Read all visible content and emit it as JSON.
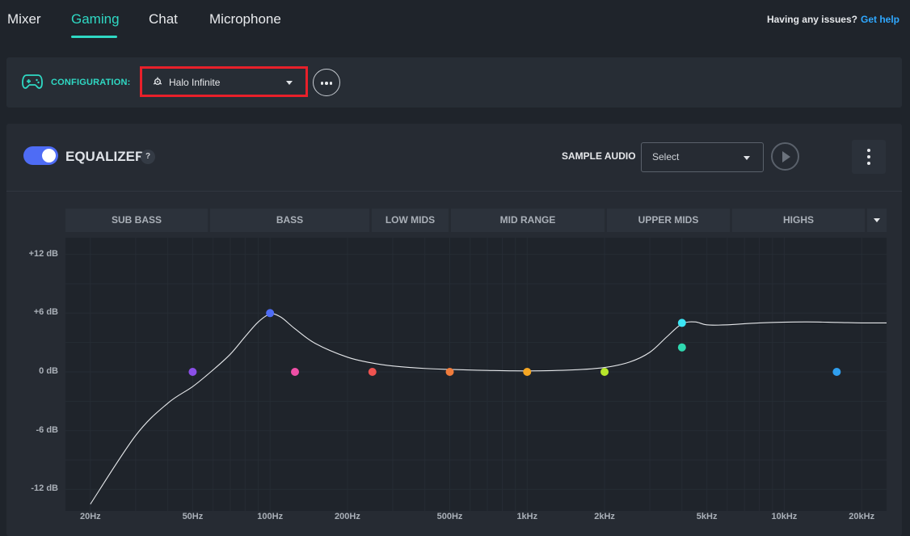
{
  "nav": {
    "tabs": [
      {
        "label": "Mixer"
      },
      {
        "label": "Gaming"
      },
      {
        "label": "Chat"
      },
      {
        "label": "Microphone"
      }
    ],
    "active_tab": "Gaming",
    "help_question": "Having any issues?",
    "help_link": "Get help"
  },
  "config": {
    "label": "CONFIGURATION:",
    "selected": "Halo Infinite",
    "icons": {
      "gamepad": "gamepad-icon",
      "preset": "steelseries-icon",
      "more": "more-horizontal-icon"
    }
  },
  "equalizer": {
    "enabled": true,
    "title": "EQUALIZER",
    "help": "?",
    "sample_audio_label": "SAMPLE AUDIO",
    "sample_select_placeholder": "Select",
    "bands": [
      "SUB BASS",
      "BASS",
      "LOW MIDS",
      "MID RANGE",
      "UPPER MIDS",
      "HIGHS"
    ],
    "accent": "#4e6cf5"
  },
  "chart_data": {
    "type": "line",
    "title": "Equalizer",
    "y_tick_labels": [
      "+12 dB",
      "+6 dB",
      "0 dB",
      "-6 dB",
      "-12 dB"
    ],
    "y_ticks": [
      12,
      6,
      0,
      -6,
      -12
    ],
    "ylim": [
      -13.7,
      13.7
    ],
    "x_tick_labels": [
      "20Hz",
      "50Hz",
      "100Hz",
      "200Hz",
      "500Hz",
      "1kHz",
      "2kHz",
      "5kHz",
      "10kHz",
      "20kHz"
    ],
    "x_ticks": [
      20,
      50,
      100,
      200,
      500,
      1000,
      2000,
      5000,
      10000,
      20000
    ],
    "xlim_hz": [
      16,
      25000
    ],
    "x_scale": "log",
    "filter_points": [
      {
        "freq": 50,
        "gain": 0,
        "color": "#8b4fe8"
      },
      {
        "freq": 100,
        "gain": 6,
        "color": "#4e6cf5"
      },
      {
        "freq": 125,
        "gain": 0,
        "color": "#ee4fa6"
      },
      {
        "freq": 250,
        "gain": 0,
        "color": "#ef5350"
      },
      {
        "freq": 500,
        "gain": 0,
        "color": "#f07c3c"
      },
      {
        "freq": 1000,
        "gain": 0,
        "color": "#f5a623"
      },
      {
        "freq": 2000,
        "gain": 0,
        "color": "#b7e62b"
      },
      {
        "freq": 4000,
        "gain": 5,
        "color": "#3ce6f5"
      },
      {
        "freq": 4000,
        "gain": 2.5,
        "color": "#2fd9b0"
      },
      {
        "freq": 16000,
        "gain": 0,
        "color": "#2f9fef"
      }
    ],
    "response_curve": [
      [
        20,
        -13.5
      ],
      [
        30,
        -6.5
      ],
      [
        40,
        -3.2
      ],
      [
        50,
        -1.5
      ],
      [
        60,
        0.2
      ],
      [
        70,
        1.8
      ],
      [
        80,
        3.6
      ],
      [
        90,
        5.1
      ],
      [
        100,
        5.9
      ],
      [
        110,
        5.6
      ],
      [
        125,
        4.4
      ],
      [
        150,
        2.9
      ],
      [
        200,
        1.5
      ],
      [
        250,
        0.9
      ],
      [
        300,
        0.6
      ],
      [
        400,
        0.35
      ],
      [
        500,
        0.25
      ],
      [
        700,
        0.15
      ],
      [
        1000,
        0.1
      ],
      [
        1500,
        0.2
      ],
      [
        2000,
        0.45
      ],
      [
        2500,
        1.0
      ],
      [
        3000,
        2.0
      ],
      [
        3500,
        3.6
      ],
      [
        4000,
        4.9
      ],
      [
        4500,
        5.1
      ],
      [
        5000,
        4.8
      ],
      [
        6000,
        4.8
      ],
      [
        8000,
        5.0
      ],
      [
        12000,
        5.1
      ],
      [
        16000,
        5.05
      ],
      [
        20000,
        5.0
      ],
      [
        25000,
        5.0
      ]
    ],
    "curve_color": "#e6e8eb",
    "grid": true
  }
}
